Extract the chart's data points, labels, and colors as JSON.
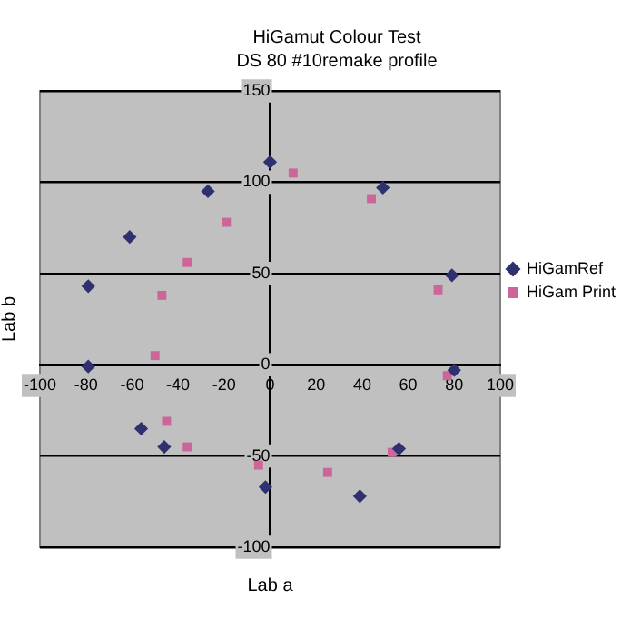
{
  "chart_data": {
    "type": "scatter",
    "title": "HiGamut Colour Test",
    "subtitle": "DS 80 #10remake profile",
    "xlabel": "Lab a",
    "ylabel": "Lab b",
    "xlim": [
      -100,
      100
    ],
    "xticks": [
      -100,
      -80,
      -60,
      -40,
      -20,
      0,
      20,
      40,
      60,
      80,
      100
    ],
    "ylim": [
      -100,
      150
    ],
    "yticks": [
      -100,
      -50,
      0,
      50,
      100,
      150
    ],
    "grid": "y",
    "legend": "right",
    "series": [
      {
        "name": "HiGamRef",
        "color": "#2e3070",
        "marker": "diamond",
        "x": [
          0,
          -27,
          -61,
          -79,
          49,
          79,
          -79,
          80,
          -56,
          -46,
          56,
          -2,
          39
        ],
        "values": [
          111,
          95,
          70,
          43,
          97,
          49,
          -1,
          -3,
          -35,
          -45,
          -46,
          -67,
          -72
        ]
      },
      {
        "name": "HiGam Print",
        "color": "#cc6699",
        "marker": "square",
        "x": [
          10,
          -19,
          -36,
          -47,
          44,
          73,
          -50,
          77,
          -45,
          -36,
          -5,
          25,
          53
        ],
        "values": [
          105,
          78,
          56,
          38,
          91,
          41,
          5,
          -6,
          -31,
          -45,
          -55,
          -59,
          -48
        ]
      }
    ]
  }
}
